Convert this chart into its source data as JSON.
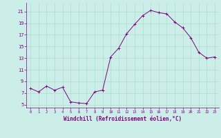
{
  "title": "",
  "xlabel": "Windchill (Refroidissement éolien,°C)",
  "ylabel": "",
  "background_color": "#cceee8",
  "line_color": "#800080",
  "marker_color": "#800080",
  "xlim": [
    -0.5,
    23.5
  ],
  "ylim": [
    4.5,
    22.5
  ],
  "yticks": [
    5,
    7,
    9,
    11,
    13,
    15,
    17,
    19,
    21
  ],
  "xticks": [
    0,
    1,
    2,
    3,
    4,
    5,
    6,
    7,
    8,
    9,
    10,
    11,
    12,
    13,
    14,
    15,
    16,
    17,
    18,
    19,
    20,
    21,
    22,
    23
  ],
  "grid_color": "#aaddcc",
  "hours": [
    0,
    1,
    2,
    3,
    4,
    5,
    6,
    7,
    8,
    9,
    10,
    11,
    12,
    13,
    14,
    15,
    16,
    17,
    18,
    19,
    20,
    21,
    22,
    23
  ],
  "values": [
    7.8,
    7.2,
    8.2,
    7.5,
    8.0,
    5.5,
    5.3,
    5.2,
    7.2,
    7.5,
    13.2,
    14.7,
    17.2,
    18.8,
    20.3,
    21.2,
    20.8,
    20.6,
    19.2,
    18.2,
    16.5,
    14.0,
    13.0,
    13.2
  ]
}
